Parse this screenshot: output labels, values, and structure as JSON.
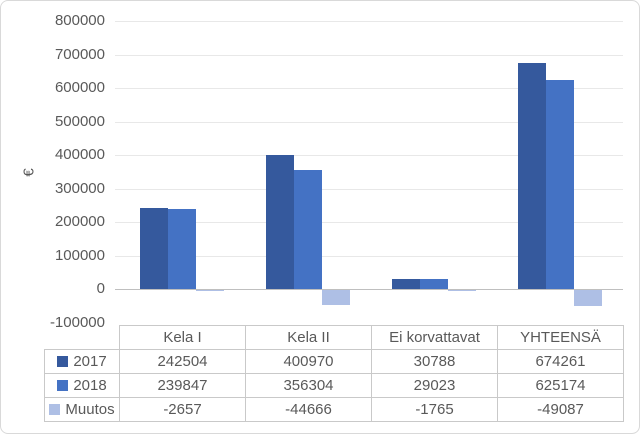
{
  "chart_data": {
    "type": "bar",
    "title": "",
    "xlabel": "",
    "ylabel": "€",
    "categories": [
      "Kela I",
      "Kela II",
      "Ei korvattavat",
      "YHTEENSÄ"
    ],
    "series": [
      {
        "name": "2017",
        "color": "#35599D",
        "values": [
          242504,
          400970,
          30788,
          674261
        ]
      },
      {
        "name": "2018",
        "color": "#4472C4",
        "values": [
          239847,
          356304,
          29023,
          625174
        ]
      },
      {
        "name": "Muutos",
        "color": "#AEBFE5",
        "values": [
          -2657,
          -44666,
          -1765,
          -49087
        ]
      }
    ],
    "ylim": [
      -100000,
      800000
    ],
    "ytick_step": 100000,
    "ytick_labels": [
      "800000",
      "700000",
      "600000",
      "500000",
      "400000",
      "300000",
      "200000",
      "100000",
      "0",
      "-100000"
    ],
    "grid": true,
    "legend_position": "data-table-left",
    "data_table_shown": true
  },
  "colors": {
    "background": "#FFFFFF",
    "chart_border": "#D9D9D9",
    "gridline": "#E8E8E8",
    "axis_line": "#BFBFBF",
    "table_border": "#C9C9C9",
    "text": "#595959"
  }
}
